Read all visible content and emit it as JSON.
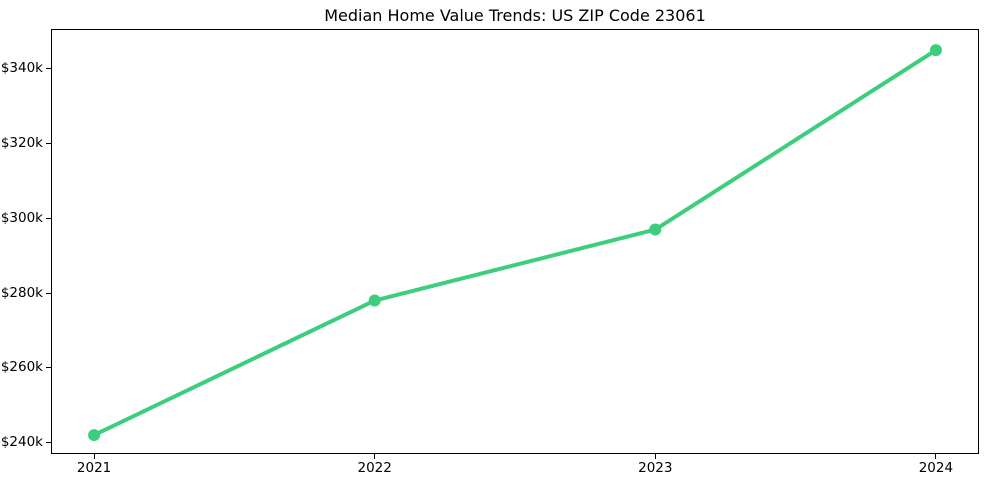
{
  "figure": {
    "background": "#ffffff",
    "axis_color": "#000000",
    "text_color": "#000000"
  },
  "chart_data": {
    "type": "line",
    "title": "Median Home Value Trends: US ZIP Code 23061",
    "x": [
      2021,
      2022,
      2023,
      2024
    ],
    "x_tick_labels": [
      "2021",
      "2022",
      "2023",
      "2024"
    ],
    "values": [
      242000,
      278000,
      297000,
      345000
    ],
    "y_ticks": [
      240000,
      260000,
      280000,
      300000,
      320000,
      340000
    ],
    "y_tick_labels": [
      "$240k",
      "$260k",
      "$280k",
      "$300k",
      "$320k",
      "$340k"
    ],
    "xlim": [
      2020.85,
      2024.15
    ],
    "ylim": [
      237200,
      350400
    ],
    "xlabel": "",
    "ylabel": "",
    "grid": false,
    "legend": null,
    "line_color": "#3cce7c",
    "line_width": 4,
    "marker": "circle",
    "marker_radius": 6
  }
}
